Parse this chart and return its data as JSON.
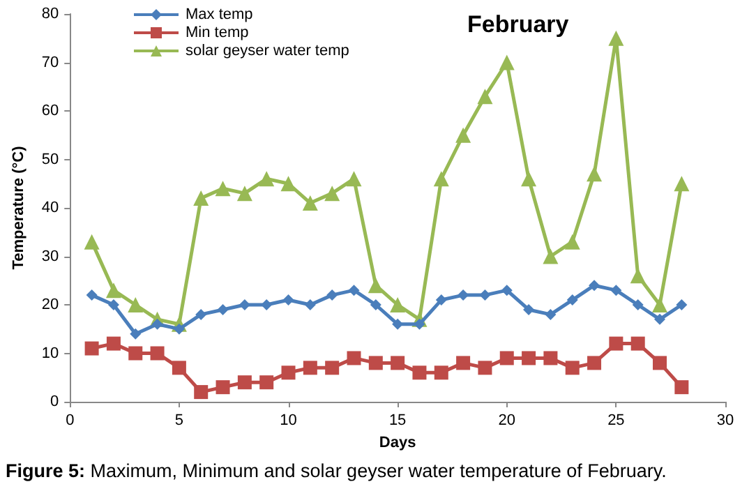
{
  "chart_data": {
    "type": "line",
    "title": "February",
    "xlabel": "Days",
    "ylabel": "Temperature (°C)",
    "annotations": [
      "Figure 5: Maximum, Minimum and solar geyser water temperature of February."
    ],
    "x": [
      1,
      2,
      3,
      4,
      5,
      6,
      7,
      8,
      9,
      10,
      11,
      12,
      13,
      14,
      15,
      16,
      17,
      18,
      19,
      20,
      21,
      22,
      23,
      24,
      25,
      26,
      27,
      28
    ],
    "series": [
      {
        "name": "Max temp",
        "color": "#4a7ebb",
        "marker": "diamond",
        "values": [
          22,
          20,
          14,
          16,
          15,
          18,
          19,
          20,
          20,
          21,
          20,
          22,
          23,
          20,
          16,
          16,
          21,
          22,
          22,
          23,
          19,
          18,
          21,
          24,
          23,
          20,
          17,
          20
        ]
      },
      {
        "name": "Min temp",
        "color": "#be4b48",
        "marker": "square",
        "values": [
          11,
          12,
          10,
          10,
          7,
          2,
          3,
          4,
          4,
          6,
          7,
          7,
          9,
          8,
          8,
          6,
          6,
          8,
          7,
          9,
          9,
          9,
          7,
          8,
          12,
          12,
          8,
          3
        ]
      },
      {
        "name": "solar geyser water temp",
        "color": "#98b954",
        "marker": "triangle",
        "values": [
          33,
          23,
          20,
          17,
          16,
          42,
          44,
          43,
          46,
          45,
          41,
          43,
          46,
          24,
          20,
          17,
          46,
          55,
          63,
          70,
          46,
          30,
          33,
          47,
          75,
          26,
          20,
          45
        ]
      }
    ],
    "xlim": [
      0,
      30
    ],
    "xticks": [
      0,
      5,
      10,
      15,
      20,
      25,
      30
    ],
    "ylim": [
      0,
      80
    ],
    "yticks": [
      0,
      10,
      20,
      30,
      40,
      50,
      60,
      70,
      80
    ],
    "grid": false,
    "legend": "top left"
  }
}
